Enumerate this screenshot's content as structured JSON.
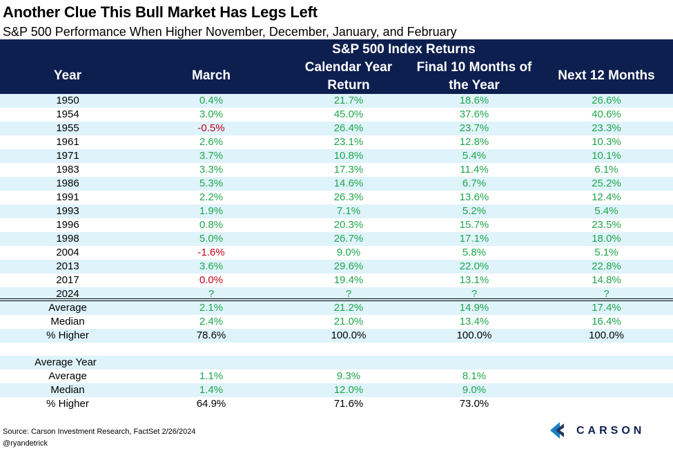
{
  "title": "Another Clue This Bull Market Has Legs Left",
  "subtitle": "S&P 500 Performance When Higher November, December, January, and February",
  "header": {
    "group": "S&P 500 Index Returns",
    "year": "Year",
    "march": "March",
    "calendar": "Calendar Year Return",
    "final10": "Final 10 Months of the Year",
    "next12": "Next 12 Months"
  },
  "chart_data": {
    "type": "table",
    "columns": [
      "Year",
      "March",
      "Calendar Year Return",
      "Final 10 Months of the Year",
      "Next 12 Months"
    ],
    "rows": [
      [
        "1950",
        "0.4%",
        "21.7%",
        "18.6%",
        "26.6%"
      ],
      [
        "1954",
        "3.0%",
        "45.0%",
        "37.6%",
        "40.6%"
      ],
      [
        "1955",
        "-0.5%",
        "26.4%",
        "23.7%",
        "23.3%"
      ],
      [
        "1961",
        "2.6%",
        "23.1%",
        "12.8%",
        "10.3%"
      ],
      [
        "1971",
        "3.7%",
        "10.8%",
        "5.4%",
        "10.1%"
      ],
      [
        "1983",
        "3.3%",
        "17.3%",
        "11.4%",
        "6.1%"
      ],
      [
        "1986",
        "5.3%",
        "14.6%",
        "6.7%",
        "25.2%"
      ],
      [
        "1991",
        "2.2%",
        "26.3%",
        "13.6%",
        "12.4%"
      ],
      [
        "1993",
        "1.9%",
        "7.1%",
        "5.2%",
        "5.4%"
      ],
      [
        "1996",
        "0.8%",
        "20.3%",
        "15.7%",
        "23.5%"
      ],
      [
        "1998",
        "5.0%",
        "26.7%",
        "17.1%",
        "18.0%"
      ],
      [
        "2004",
        "-1.6%",
        "9.0%",
        "5.8%",
        "5.1%"
      ],
      [
        "2013",
        "3.6%",
        "29.6%",
        "22.0%",
        "22.8%"
      ],
      [
        "2017",
        "0.0%",
        "19.4%",
        "13.1%",
        "14.8%"
      ],
      [
        "2024",
        "?",
        "?",
        "?",
        "?"
      ]
    ],
    "summary": [
      [
        "Average",
        "2.1%",
        "21.2%",
        "14.9%",
        "17.4%"
      ],
      [
        "Median",
        "2.4%",
        "21.0%",
        "13.4%",
        "16.4%"
      ],
      [
        "% Higher",
        "78.6%",
        "100.0%",
        "100.0%",
        "100.0%"
      ]
    ],
    "average_year_label": "Average Year",
    "average_year": [
      [
        "Average",
        "1.1%",
        "9.3%",
        "8.1%",
        ""
      ],
      [
        "Median",
        "1.4%",
        "12.0%",
        "9.0%",
        ""
      ],
      [
        "% Higher",
        "64.9%",
        "71.6%",
        "73.0%",
        ""
      ]
    ]
  },
  "colors": {
    "header_bg": "#0d1f4f",
    "band": "#dff3fb",
    "positive": "#1ea64a",
    "negative": "#c0001a"
  },
  "footer": {
    "source": "Source: Carson Investment Research, FactSet 2/26/2024",
    "handle": "@ryandetrick",
    "logo": "CARSON"
  }
}
